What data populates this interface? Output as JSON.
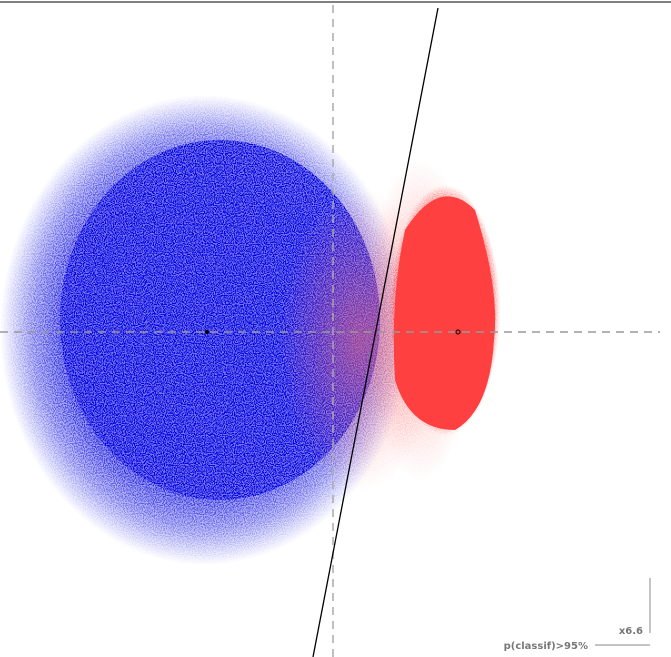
{
  "scale_label": "x6.6",
  "legend": {
    "label": "p(classif)>95%"
  }
}
